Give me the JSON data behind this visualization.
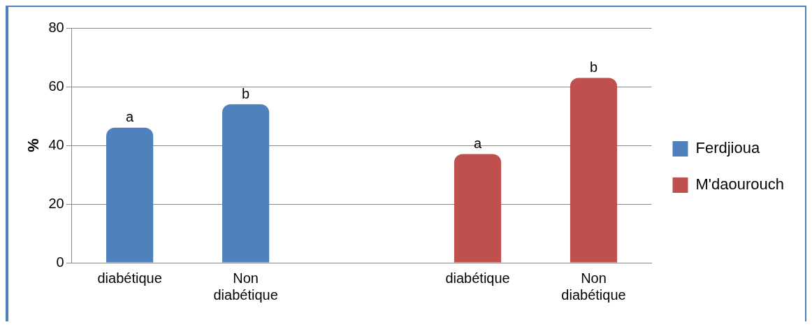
{
  "chart_data": {
    "type": "bar",
    "ylabel": "%",
    "categories": [
      "diabétique",
      "Non diabétique",
      null,
      "diabétique",
      "Non diabétique"
    ],
    "series": [
      {
        "name": "Ferdjioua",
        "color": "#4f81bd",
        "values": [
          46,
          54,
          null,
          null,
          null
        ],
        "value_labels": [
          "a",
          "b",
          null,
          null,
          null
        ]
      },
      {
        "name": "M'daourouch",
        "color": "#c0504d",
        "values": [
          null,
          null,
          null,
          37,
          63
        ],
        "value_labels": [
          null,
          null,
          null,
          "a",
          "b"
        ]
      }
    ],
    "ylim": [
      0,
      80
    ],
    "yticks": [
      0,
      20,
      40,
      60,
      80
    ],
    "grid": "y",
    "legend": "right"
  }
}
